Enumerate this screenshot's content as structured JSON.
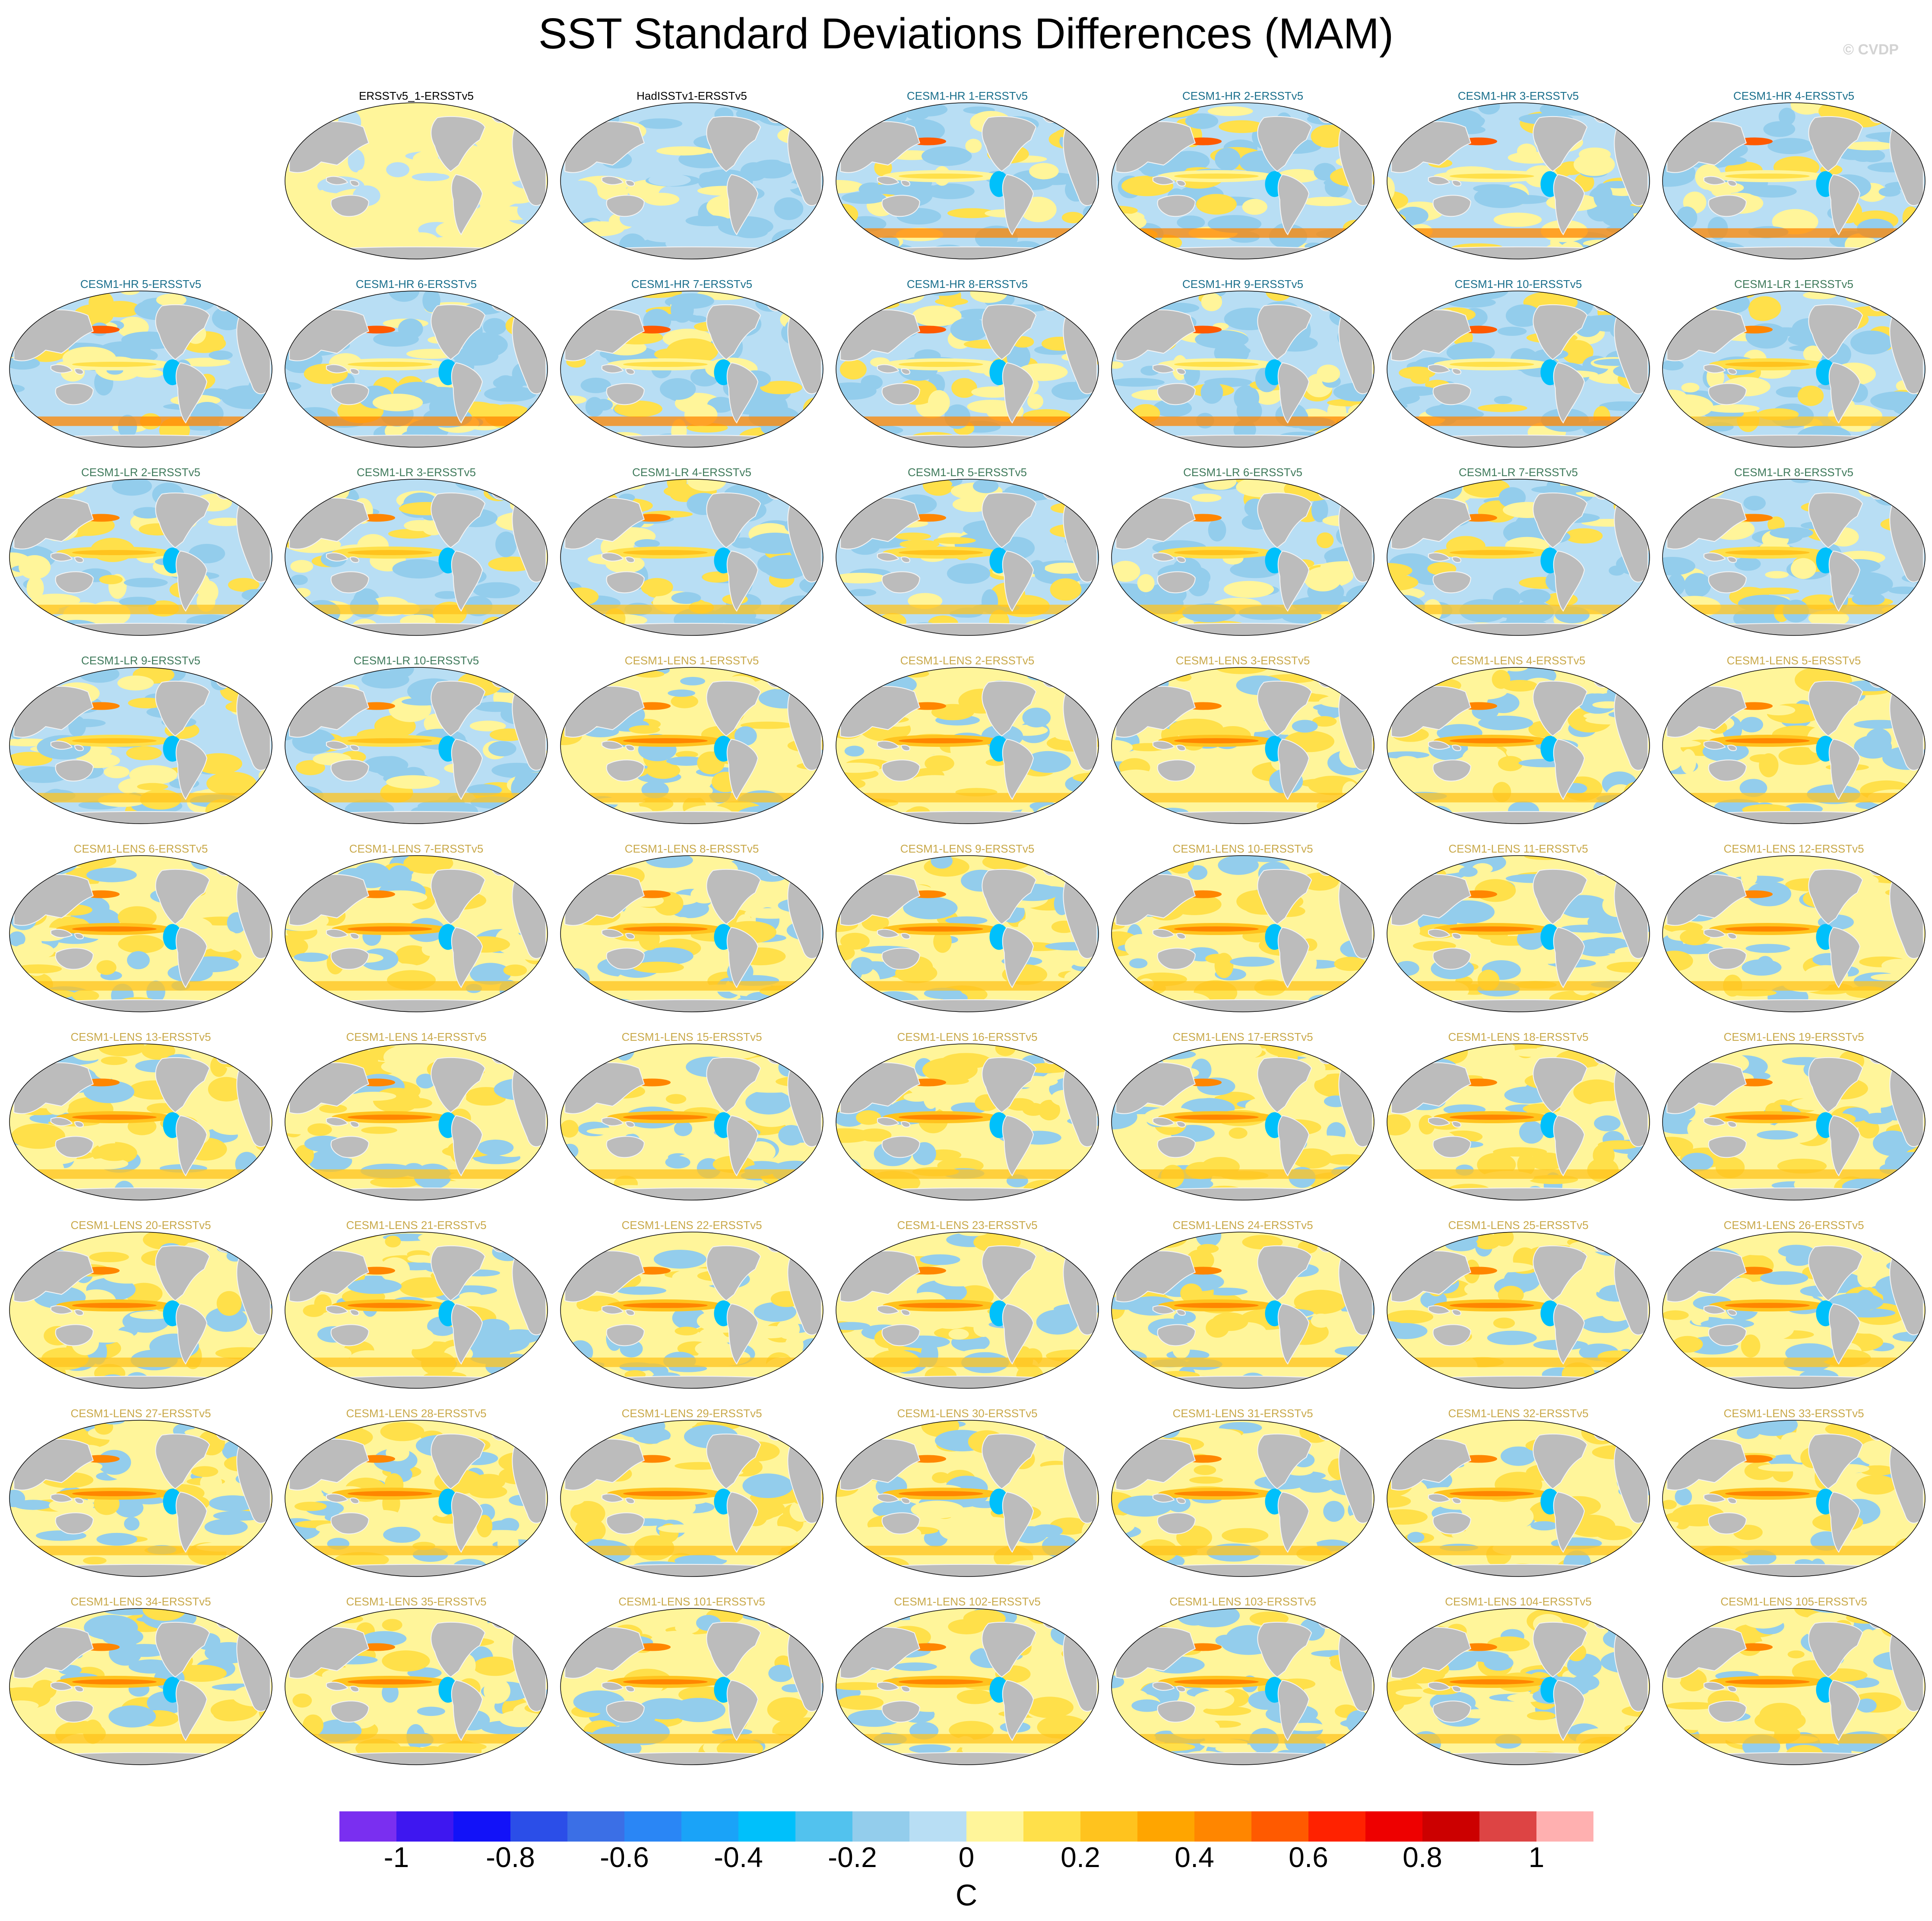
{
  "title": "SST Standard Deviations Differences (MAM)",
  "credit": "© CVDP",
  "colors": {
    "land": "#bcbcbc",
    "coast_outline": "#f4f4f4",
    "title_obs": "#000000",
    "title_hr": "#1a6f8c",
    "title_lr": "#3f7a5b",
    "title_lens": "#c9a94a"
  },
  "panels": [
    {
      "label": "ERSSTv5_1-ERSSTv5",
      "group": "obs",
      "style": "obs_pos"
    },
    {
      "label": "HadISSTv1-ERSSTv5",
      "group": "obs",
      "style": "obs_neg"
    },
    {
      "label": "CESM1-HR 1-ERSSTv5",
      "group": "hr",
      "style": "hr"
    },
    {
      "label": "CESM1-HR 2-ERSSTv5",
      "group": "hr",
      "style": "hr"
    },
    {
      "label": "CESM1-HR 3-ERSSTv5",
      "group": "hr",
      "style": "hr"
    },
    {
      "label": "CESM1-HR 4-ERSSTv5",
      "group": "hr",
      "style": "hr"
    },
    {
      "label": "CESM1-HR 5-ERSSTv5",
      "group": "hr",
      "style": "hr"
    },
    {
      "label": "CESM1-HR 6-ERSSTv5",
      "group": "hr",
      "style": "hr"
    },
    {
      "label": "CESM1-HR 7-ERSSTv5",
      "group": "hr",
      "style": "hr"
    },
    {
      "label": "CESM1-HR 8-ERSSTv5",
      "group": "hr",
      "style": "hr"
    },
    {
      "label": "CESM1-HR 9-ERSSTv5",
      "group": "hr",
      "style": "hr"
    },
    {
      "label": "CESM1-HR 10-ERSSTv5",
      "group": "hr",
      "style": "hr"
    },
    {
      "label": "CESM1-LR 1-ERSSTv5",
      "group": "lr",
      "style": "lr"
    },
    {
      "label": "CESM1-LR 2-ERSSTv5",
      "group": "lr",
      "style": "lr"
    },
    {
      "label": "CESM1-LR 3-ERSSTv5",
      "group": "lr",
      "style": "lr"
    },
    {
      "label": "CESM1-LR 4-ERSSTv5",
      "group": "lr",
      "style": "lr"
    },
    {
      "label": "CESM1-LR 5-ERSSTv5",
      "group": "lr",
      "style": "lr"
    },
    {
      "label": "CESM1-LR 6-ERSSTv5",
      "group": "lr",
      "style": "lr"
    },
    {
      "label": "CESM1-LR 7-ERSSTv5",
      "group": "lr",
      "style": "lr"
    },
    {
      "label": "CESM1-LR 8-ERSSTv5",
      "group": "lr",
      "style": "lr"
    },
    {
      "label": "CESM1-LR 9-ERSSTv5",
      "group": "lr",
      "style": "lr"
    },
    {
      "label": "CESM1-LR 10-ERSSTv5",
      "group": "lr",
      "style": "lr"
    },
    {
      "label": "CESM1-LENS 1-ERSSTv5",
      "group": "lens",
      "style": "lens"
    },
    {
      "label": "CESM1-LENS 2-ERSSTv5",
      "group": "lens",
      "style": "lens"
    },
    {
      "label": "CESM1-LENS 3-ERSSTv5",
      "group": "lens",
      "style": "lens"
    },
    {
      "label": "CESM1-LENS 4-ERSSTv5",
      "group": "lens",
      "style": "lens"
    },
    {
      "label": "CESM1-LENS 5-ERSSTv5",
      "group": "lens",
      "style": "lens"
    },
    {
      "label": "CESM1-LENS 6-ERSSTv5",
      "group": "lens",
      "style": "lens"
    },
    {
      "label": "CESM1-LENS 7-ERSSTv5",
      "group": "lens",
      "style": "lens"
    },
    {
      "label": "CESM1-LENS 8-ERSSTv5",
      "group": "lens",
      "style": "lens"
    },
    {
      "label": "CESM1-LENS 9-ERSSTv5",
      "group": "lens",
      "style": "lens"
    },
    {
      "label": "CESM1-LENS 10-ERSSTv5",
      "group": "lens",
      "style": "lens"
    },
    {
      "label": "CESM1-LENS 11-ERSSTv5",
      "group": "lens",
      "style": "lens"
    },
    {
      "label": "CESM1-LENS 12-ERSSTv5",
      "group": "lens",
      "style": "lens"
    },
    {
      "label": "CESM1-LENS 13-ERSSTv5",
      "group": "lens",
      "style": "lens"
    },
    {
      "label": "CESM1-LENS 14-ERSSTv5",
      "group": "lens",
      "style": "lens"
    },
    {
      "label": "CESM1-LENS 15-ERSSTv5",
      "group": "lens",
      "style": "lens"
    },
    {
      "label": "CESM1-LENS 16-ERSSTv5",
      "group": "lens",
      "style": "lens"
    },
    {
      "label": "CESM1-LENS 17-ERSSTv5",
      "group": "lens",
      "style": "lens"
    },
    {
      "label": "CESM1-LENS 18-ERSSTv5",
      "group": "lens",
      "style": "lens"
    },
    {
      "label": "CESM1-LENS 19-ERSSTv5",
      "group": "lens",
      "style": "lens"
    },
    {
      "label": "CESM1-LENS 20-ERSSTv5",
      "group": "lens",
      "style": "lens"
    },
    {
      "label": "CESM1-LENS 21-ERSSTv5",
      "group": "lens",
      "style": "lens"
    },
    {
      "label": "CESM1-LENS 22-ERSSTv5",
      "group": "lens",
      "style": "lens"
    },
    {
      "label": "CESM1-LENS 23-ERSSTv5",
      "group": "lens",
      "style": "lens"
    },
    {
      "label": "CESM1-LENS 24-ERSSTv5",
      "group": "lens",
      "style": "lens"
    },
    {
      "label": "CESM1-LENS 25-ERSSTv5",
      "group": "lens",
      "style": "lens"
    },
    {
      "label": "CESM1-LENS 26-ERSSTv5",
      "group": "lens",
      "style": "lens"
    },
    {
      "label": "CESM1-LENS 27-ERSSTv5",
      "group": "lens",
      "style": "lens"
    },
    {
      "label": "CESM1-LENS 28-ERSSTv5",
      "group": "lens",
      "style": "lens"
    },
    {
      "label": "CESM1-LENS 29-ERSSTv5",
      "group": "lens",
      "style": "lens"
    },
    {
      "label": "CESM1-LENS 30-ERSSTv5",
      "group": "lens",
      "style": "lens"
    },
    {
      "label": "CESM1-LENS 31-ERSSTv5",
      "group": "lens",
      "style": "lens"
    },
    {
      "label": "CESM1-LENS 32-ERSSTv5",
      "group": "lens",
      "style": "lens"
    },
    {
      "label": "CESM1-LENS 33-ERSSTv5",
      "group": "lens",
      "style": "lens"
    },
    {
      "label": "CESM1-LENS 34-ERSSTv5",
      "group": "lens",
      "style": "lens"
    },
    {
      "label": "CESM1-LENS 35-ERSSTv5",
      "group": "lens",
      "style": "lens"
    },
    {
      "label": "CESM1-LENS 101-ERSSTv5",
      "group": "lens",
      "style": "lens"
    },
    {
      "label": "CESM1-LENS 102-ERSSTv5",
      "group": "lens",
      "style": "lens"
    },
    {
      "label": "CESM1-LENS 103-ERSSTv5",
      "group": "lens",
      "style": "lens"
    },
    {
      "label": "CESM1-LENS 104-ERSSTv5",
      "group": "lens",
      "style": "lens"
    },
    {
      "label": "CESM1-LENS 105-ERSSTv5",
      "group": "lens",
      "style": "lens"
    }
  ],
  "colorbar": {
    "units": "C",
    "min": -1.1,
    "max": 1.1,
    "step": 0.1,
    "tick_labels": [
      "-1",
      "-0.8",
      "-0.6",
      "-0.4",
      "-0.2",
      "0",
      "0.2",
      "0.4",
      "0.6",
      "0.8",
      "1"
    ],
    "tick_values": [
      -1,
      -0.8,
      -0.6,
      -0.4,
      -0.2,
      0,
      0.2,
      0.4,
      0.6,
      0.8,
      1
    ],
    "colors": [
      "#7a2ff0",
      "#3e17f0",
      "#1212f8",
      "#2b4ee8",
      "#3b6fe6",
      "#2a86f5",
      "#1aa3f8",
      "#00c0fb",
      "#52c2ee",
      "#93cdec",
      "#b8def4",
      "#fff59a",
      "#ffe04a",
      "#ffc31e",
      "#ffa500",
      "#ff8600",
      "#ff5a00",
      "#ff2200",
      "#ee0000",
      "#cc0000",
      "#dd4444",
      "#ffb0b0"
    ]
  }
}
